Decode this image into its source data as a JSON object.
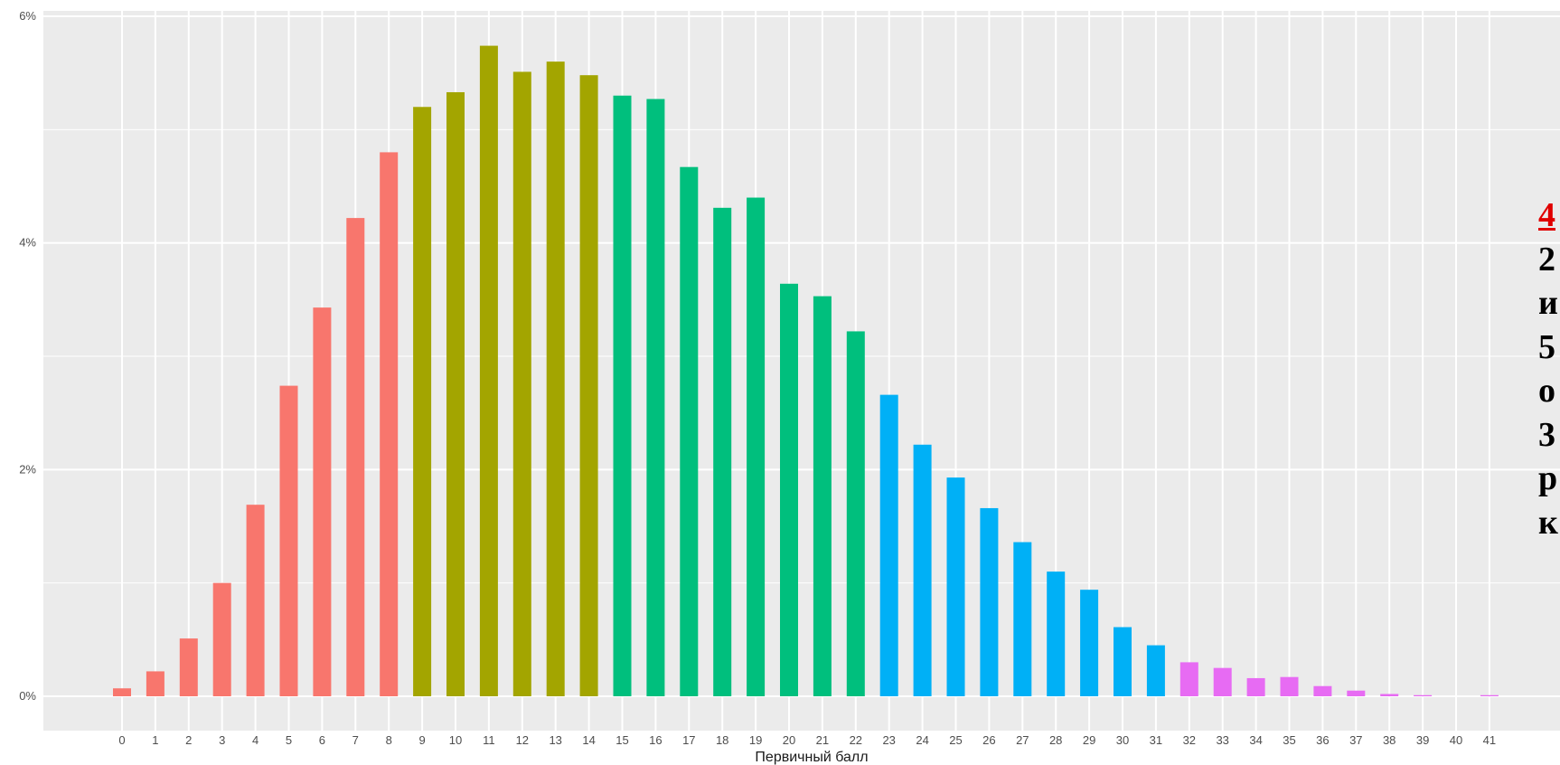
{
  "chart_data": {
    "type": "bar",
    "title": "",
    "xlabel": "Первичный балл",
    "ylabel": "",
    "ylim": [
      0,
      6
    ],
    "y_ticks": [
      "0%",
      "2%",
      "4%",
      "6%"
    ],
    "grid": true,
    "categories": [
      "0",
      "1",
      "2",
      "3",
      "4",
      "5",
      "6",
      "7",
      "8",
      "9",
      "10",
      "11",
      "12",
      "13",
      "14",
      "15",
      "16",
      "17",
      "18",
      "19",
      "20",
      "21",
      "22",
      "23",
      "24",
      "25",
      "26",
      "27",
      "28",
      "29",
      "30",
      "31",
      "32",
      "33",
      "34",
      "35",
      "36",
      "37",
      "38",
      "39",
      "40",
      "41"
    ],
    "values": [
      0.07,
      0.22,
      0.51,
      1.0,
      1.69,
      2.74,
      3.43,
      4.22,
      4.8,
      5.2,
      5.33,
      5.74,
      5.51,
      5.6,
      5.48,
      5.3,
      5.27,
      4.67,
      4.31,
      4.4,
      3.64,
      3.53,
      3.22,
      2.66,
      2.22,
      1.93,
      1.66,
      1.36,
      1.1,
      0.94,
      0.61,
      0.45,
      0.3,
      0.25,
      0.16,
      0.17,
      0.09,
      0.05,
      0.02,
      0.01,
      0.0,
      0.01
    ],
    "colors_by_range": [
      {
        "from": 0,
        "to": 8,
        "color": "#f8766d"
      },
      {
        "from": 9,
        "to": 14,
        "color": "#a3a500"
      },
      {
        "from": 15,
        "to": 22,
        "color": "#00bf7d"
      },
      {
        "from": 23,
        "to": 31,
        "color": "#00b0f6"
      },
      {
        "from": 32,
        "to": 41,
        "color": "#e76bf3"
      }
    ],
    "panel_background": "#ebebeb",
    "grid_color": "#ffffff"
  },
  "side_text": {
    "lines": [
      "4",
      "2",
      "и",
      "5",
      "о",
      "3",
      "р",
      "к"
    ],
    "first_color": "#e00000"
  }
}
